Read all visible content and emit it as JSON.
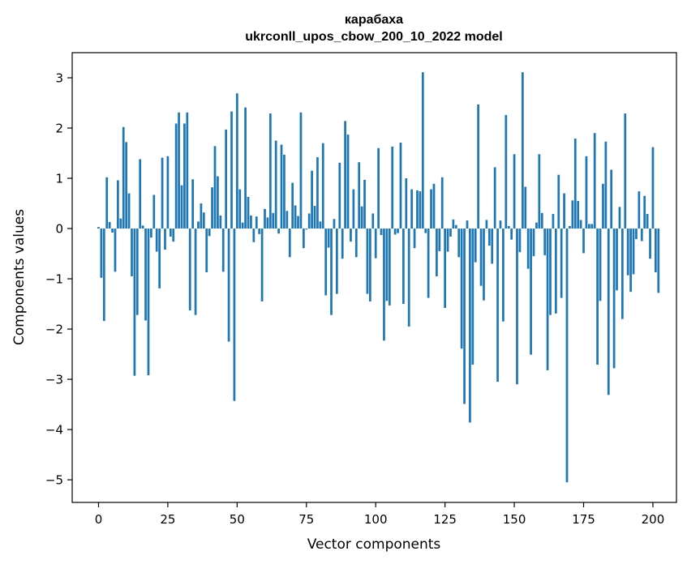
{
  "chart_data": {
    "type": "bar",
    "title": "карабаха",
    "subtitle": "ukrconll_upos_cbow_200_10_2022 model",
    "xlabel": "Vector components",
    "ylabel": "Components values",
    "xlim": [
      -9.5,
      208.5
    ],
    "ylim": [
      -5.45,
      3.5
    ],
    "xticks": [
      0,
      25,
      50,
      75,
      100,
      125,
      150,
      175,
      200
    ],
    "yticks": [
      -5,
      -4,
      -3,
      -2,
      -1,
      0,
      1,
      2,
      3
    ],
    "grid": false,
    "bar_color": "#1f77b4",
    "values": [
      0.03,
      -0.98,
      -1.84,
      1.02,
      0.13,
      -0.08,
      -0.86,
      0.96,
      0.2,
      2.02,
      1.72,
      0.7,
      -0.95,
      -2.93,
      -1.72,
      1.38,
      0.06,
      -1.83,
      -2.92,
      -0.18,
      0.67,
      -0.46,
      -1.19,
      1.41,
      -0.42,
      1.44,
      -0.16,
      -0.26,
      2.09,
      2.31,
      0.86,
      2.09,
      2.31,
      -1.63,
      0.98,
      -1.72,
      0.14,
      0.5,
      0.32,
      -0.87,
      -0.15,
      0.82,
      1.64,
      1.04,
      0.26,
      -0.86,
      1.97,
      -2.25,
      2.33,
      -3.43,
      2.69,
      0.78,
      0.12,
      2.41,
      0.63,
      0.26,
      -0.27,
      0.24,
      -0.11,
      -1.45,
      0.39,
      0.22,
      2.29,
      0.31,
      1.75,
      -0.1,
      1.67,
      1.47,
      0.35,
      -0.57,
      0.91,
      0.46,
      0.25,
      2.31,
      -0.39,
      -0.02,
      0.3,
      1.15,
      0.45,
      1.42,
      0.14,
      1.7,
      -1.33,
      -0.38,
      -1.72,
      0.19,
      -1.3,
      1.31,
      -0.6,
      2.14,
      1.87,
      -0.26,
      0.78,
      -0.57,
      1.32,
      0.44,
      0.97,
      -1.3,
      -1.45,
      0.3,
      -0.59,
      1.6,
      -0.13,
      -2.23,
      -1.44,
      -1.53,
      1.63,
      -0.12,
      -0.09,
      1.71,
      -1.5,
      1.0,
      -1.95,
      0.78,
      -0.39,
      0.76,
      0.74,
      3.11,
      -0.09,
      -1.38,
      0.78,
      0.89,
      -0.95,
      -0.45,
      1.02,
      -1.58,
      -0.46,
      -0.16,
      0.18,
      0.07,
      -0.57,
      -2.39,
      -3.49,
      0.16,
      -3.86,
      -2.71,
      -0.67,
      2.47,
      -1.14,
      -1.43,
      0.17,
      -0.34,
      -0.7,
      1.22,
      -3.05,
      0.16,
      -1.85,
      2.26,
      0.05,
      -0.22,
      1.48,
      -3.1,
      -0.47,
      3.11,
      0.83,
      -0.8,
      -2.51,
      -0.55,
      0.12,
      1.48,
      0.31,
      -0.53,
      -2.82,
      -1.72,
      0.29,
      -1.69,
      1.07,
      -1.38,
      0.7,
      -5.05,
      0.05,
      0.56,
      1.79,
      0.55,
      0.17,
      -0.49,
      1.44,
      0.09,
      0.09,
      1.9,
      -2.71,
      -1.44,
      0.89,
      1.73,
      -3.31,
      1.17,
      -2.78,
      -1.23,
      0.43,
      -1.8,
      2.29,
      -0.93,
      -1.26,
      -0.91,
      -0.21,
      0.74,
      -0.25,
      0.65,
      0.29,
      -0.6,
      1.62,
      -0.87,
      -1.28
    ]
  }
}
